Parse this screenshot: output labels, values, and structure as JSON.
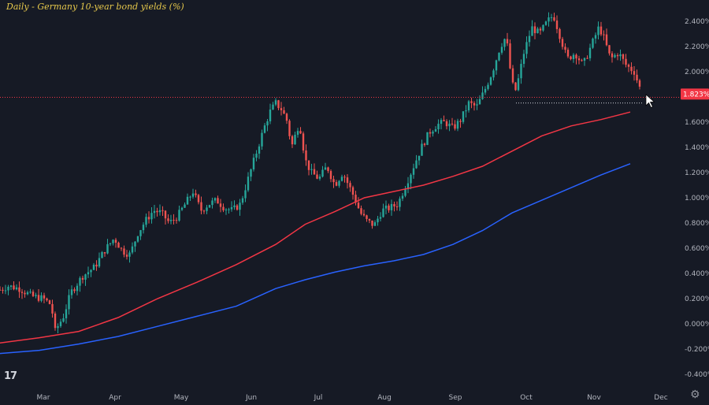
{
  "chart_data": {
    "type": "candlestick",
    "title": "Daily - Germany 10-year bond yields (%)",
    "last_price_label": "1.823%",
    "last_price": 1.823,
    "y_axis": {
      "ticks": [
        "2.400%",
        "2.200%",
        "2.000%",
        "1.800%",
        "1.600%",
        "1.400%",
        "1.200%",
        "1.000%",
        "0.800%",
        "0.600%",
        "0.400%",
        "0.200%",
        "0.000%",
        "-0.200%",
        "-0.400%"
      ],
      "tick_values": [
        2.4,
        2.2,
        2.0,
        1.8,
        1.6,
        1.4,
        1.2,
        1.0,
        0.8,
        0.6,
        0.4,
        0.2,
        0.0,
        -0.2,
        -0.4
      ]
    },
    "x_axis": {
      "ticks": [
        "Mar",
        "Apr",
        "May",
        "Jun",
        "Jul",
        "Aug",
        "Sep",
        "Oct",
        "Nov",
        "Dec"
      ]
    },
    "ohlc_close_path": [
      [
        0,
        0.27
      ],
      [
        4,
        0.3
      ],
      [
        10,
        0.28
      ],
      [
        16,
        0.22
      ],
      [
        22,
        0.2
      ],
      [
        26,
        0.15
      ],
      [
        28,
        -0.06
      ],
      [
        30,
        0.0
      ],
      [
        32,
        0.05
      ],
      [
        36,
        0.25
      ],
      [
        42,
        0.38
      ],
      [
        48,
        0.45
      ],
      [
        53,
        0.58
      ],
      [
        58,
        0.68
      ],
      [
        62,
        0.58
      ],
      [
        66,
        0.55
      ],
      [
        70,
        0.72
      ],
      [
        74,
        0.82
      ],
      [
        78,
        0.9
      ],
      [
        82,
        0.88
      ],
      [
        86,
        0.8
      ],
      [
        90,
        0.85
      ],
      [
        94,
        0.95
      ],
      [
        98,
        1.05
      ],
      [
        102,
        0.9
      ],
      [
        106,
        0.95
      ],
      [
        110,
        0.98
      ],
      [
        114,
        0.92
      ],
      [
        118,
        0.9
      ],
      [
        122,
        0.95
      ],
      [
        126,
        1.15
      ],
      [
        130,
        1.35
      ],
      [
        134,
        1.55
      ],
      [
        137,
        1.68
      ],
      [
        140,
        1.75
      ],
      [
        143,
        1.7
      ],
      [
        146,
        1.6
      ],
      [
        148,
        1.4
      ],
      [
        150,
        1.5
      ],
      [
        152,
        1.6
      ],
      [
        155,
        1.3
      ],
      [
        158,
        1.2
      ],
      [
        162,
        1.15
      ],
      [
        166,
        1.25
      ],
      [
        170,
        1.1
      ],
      [
        174,
        1.2
      ],
      [
        177,
        1.1
      ],
      [
        180,
        1.0
      ],
      [
        183,
        0.88
      ],
      [
        186,
        0.82
      ],
      [
        190,
        0.78
      ],
      [
        194,
        0.9
      ],
      [
        198,
        0.92
      ],
      [
        202,
        0.95
      ],
      [
        206,
        1.1
      ],
      [
        210,
        1.25
      ],
      [
        214,
        1.4
      ],
      [
        218,
        1.52
      ],
      [
        222,
        1.58
      ],
      [
        226,
        1.6
      ],
      [
        230,
        1.55
      ],
      [
        234,
        1.62
      ],
      [
        238,
        1.75
      ],
      [
        242,
        1.72
      ],
      [
        246,
        1.85
      ],
      [
        250,
        2.0
      ],
      [
        254,
        2.2
      ],
      [
        257,
        2.28
      ],
      [
        260,
        1.9
      ],
      [
        262,
        1.85
      ],
      [
        266,
        2.15
      ],
      [
        270,
        2.35
      ],
      [
        274,
        2.3
      ],
      [
        278,
        2.4
      ],
      [
        281,
        2.45
      ],
      [
        284,
        2.3
      ],
      [
        288,
        2.1
      ],
      [
        292,
        2.15
      ],
      [
        296,
        2.05
      ],
      [
        300,
        2.2
      ],
      [
        304,
        2.35
      ],
      [
        306,
        2.3
      ],
      [
        310,
        2.1
      ],
      [
        314,
        2.15
      ],
      [
        318,
        2.05
      ],
      [
        322,
        2.0
      ],
      [
        326,
        1.82
      ]
    ],
    "series": [
      {
        "name": "",
        "color": "#f23645",
        "values_path": [
          [
            -4,
            -0.16
          ],
          [
            20,
            -0.11
          ],
          [
            40,
            -0.06
          ],
          [
            60,
            0.05
          ],
          [
            80,
            0.2
          ],
          [
            100,
            0.33
          ],
          [
            120,
            0.47
          ],
          [
            140,
            0.63
          ],
          [
            155,
            0.79
          ],
          [
            170,
            0.89
          ],
          [
            185,
            1.0
          ],
          [
            200,
            1.05
          ],
          [
            215,
            1.1
          ],
          [
            230,
            1.17
          ],
          [
            245,
            1.25
          ],
          [
            260,
            1.37
          ],
          [
            275,
            1.49
          ],
          [
            290,
            1.57
          ],
          [
            305,
            1.62
          ],
          [
            320,
            1.68
          ]
        ]
      },
      {
        "name": "",
        "color": "#2962ff",
        "values_path": [
          [
            -4,
            -0.24
          ],
          [
            20,
            -0.21
          ],
          [
            40,
            -0.16
          ],
          [
            60,
            -0.1
          ],
          [
            80,
            -0.02
          ],
          [
            100,
            0.06
          ],
          [
            120,
            0.14
          ],
          [
            140,
            0.28
          ],
          [
            155,
            0.35
          ],
          [
            170,
            0.41
          ],
          [
            185,
            0.46
          ],
          [
            200,
            0.5
          ],
          [
            215,
            0.55
          ],
          [
            230,
            0.63
          ],
          [
            245,
            0.74
          ],
          [
            260,
            0.88
          ],
          [
            275,
            0.98
          ],
          [
            290,
            1.08
          ],
          [
            305,
            1.18
          ],
          [
            320,
            1.27
          ]
        ]
      }
    ],
    "horizontal_markers": [
      1.8,
      1.77
    ],
    "up_color": "#26a69a",
    "down_color": "#ef5350",
    "grid": false
  },
  "ui": {
    "logo_text": "17",
    "settings_icon": "gear-icon",
    "settings_glyph": "⚙"
  }
}
